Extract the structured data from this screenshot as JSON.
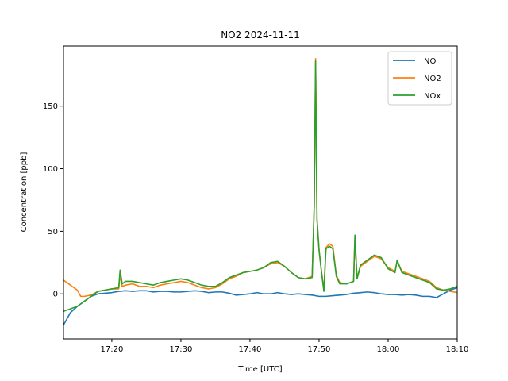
{
  "chart_data": {
    "type": "line",
    "title": "NO2 2024-11-11",
    "xlabel": "Time [UTC]",
    "ylabel": "Concentration [ppb]",
    "x_unit": "time (HH:MM)",
    "xlim": [
      "17:13",
      "18:10"
    ],
    "ylim": [
      -36,
      198
    ],
    "x_ticks": [
      "17:20",
      "17:30",
      "17:40",
      "17:50",
      "18:00",
      "18:10"
    ],
    "y_ticks": [
      0,
      50,
      100,
      150
    ],
    "grid": false,
    "legend_position": "top-right",
    "series": [
      {
        "name": "NO",
        "color": "#1f77b4",
        "points": [
          [
            "17:13",
            -25
          ],
          [
            "17:14",
            -15
          ],
          [
            "17:15",
            -10
          ],
          [
            "17:16",
            -6
          ],
          [
            "17:17",
            -2
          ],
          [
            "17:18",
            0
          ],
          [
            "17:19",
            0.5
          ],
          [
            "17:20",
            1
          ],
          [
            "17:21",
            2
          ],
          [
            "17:22",
            2.5
          ],
          [
            "17:23",
            2
          ],
          [
            "17:24",
            2.5
          ],
          [
            "17:25",
            2.5
          ],
          [
            "17:26",
            1.5
          ],
          [
            "17:27",
            2
          ],
          [
            "17:28",
            2
          ],
          [
            "17:29",
            1.5
          ],
          [
            "17:30",
            1.5
          ],
          [
            "17:31",
            2
          ],
          [
            "17:32",
            2.5
          ],
          [
            "17:33",
            2
          ],
          [
            "17:34",
            1
          ],
          [
            "17:35",
            1.5
          ],
          [
            "17:36",
            1.5
          ],
          [
            "17:37",
            0.5
          ],
          [
            "17:38",
            -1
          ],
          [
            "17:39",
            -0.5
          ],
          [
            "17:40",
            0
          ],
          [
            "17:41",
            1
          ],
          [
            "17:42",
            0
          ],
          [
            "17:43",
            0
          ],
          [
            "17:44",
            1
          ],
          [
            "17:45",
            0
          ],
          [
            "17:46",
            -0.5
          ],
          [
            "17:47",
            0
          ],
          [
            "17:48",
            -0.5
          ],
          [
            "17:49",
            -1
          ],
          [
            "17:50",
            -2
          ],
          [
            "17:51",
            -2
          ],
          [
            "17:52",
            -1.5
          ],
          [
            "17:53",
            -1
          ],
          [
            "17:54",
            -0.5
          ],
          [
            "17:55",
            0.5
          ],
          [
            "17:56",
            1
          ],
          [
            "17:57",
            1.5
          ],
          [
            "17:58",
            1
          ],
          [
            "17:59",
            0
          ],
          [
            "18:00",
            -0.5
          ],
          [
            "18:01",
            -0.5
          ],
          [
            "18:02",
            -1
          ],
          [
            "18:03",
            -0.5
          ],
          [
            "18:04",
            -1
          ],
          [
            "18:05",
            -2
          ],
          [
            "18:06",
            -2
          ],
          [
            "18:07",
            -3
          ],
          [
            "18:08",
            0
          ],
          [
            "18:09",
            3
          ],
          [
            "18:10",
            5
          ]
        ]
      },
      {
        "name": "NO2",
        "color": "#ff7f0e",
        "points": [
          [
            "17:13",
            11
          ],
          [
            "17:14",
            7
          ],
          [
            "17:15",
            3
          ],
          [
            "17:15.5",
            -2
          ],
          [
            "17:16",
            -2
          ],
          [
            "17:17",
            -1
          ],
          [
            "17:18",
            2
          ],
          [
            "17:19",
            3
          ],
          [
            "17:20",
            4
          ],
          [
            "17:21",
            4
          ],
          [
            "17:21.2",
            15
          ],
          [
            "17:21.5",
            6
          ],
          [
            "17:22",
            7
          ],
          [
            "17:23",
            8
          ],
          [
            "17:24",
            6
          ],
          [
            "17:25",
            6
          ],
          [
            "17:26",
            5
          ],
          [
            "17:27",
            7
          ],
          [
            "17:28",
            8
          ],
          [
            "17:29",
            9
          ],
          [
            "17:30",
            10
          ],
          [
            "17:31",
            9
          ],
          [
            "17:32",
            7
          ],
          [
            "17:33",
            5
          ],
          [
            "17:34",
            4
          ],
          [
            "17:35",
            5
          ],
          [
            "17:36",
            8
          ],
          [
            "17:37",
            12
          ],
          [
            "17:38",
            14
          ],
          [
            "17:39",
            17
          ],
          [
            "17:40",
            18
          ],
          [
            "17:41",
            19
          ],
          [
            "17:42",
            21
          ],
          [
            "17:43",
            24
          ],
          [
            "17:44",
            25
          ],
          [
            "17:45",
            22
          ],
          [
            "17:46",
            17
          ],
          [
            "17:47",
            13
          ],
          [
            "17:48",
            12
          ],
          [
            "17:49",
            14
          ],
          [
            "17:49.3",
            70
          ],
          [
            "17:49.5",
            188
          ],
          [
            "17:49.7",
            60
          ],
          [
            "17:50",
            35
          ],
          [
            "17:50.3",
            20
          ],
          [
            "17:50.7",
            3
          ],
          [
            "17:51",
            37
          ],
          [
            "17:51.5",
            40
          ],
          [
            "17:52",
            38
          ],
          [
            "17:52.5",
            15
          ],
          [
            "17:53",
            9
          ],
          [
            "17:54",
            8
          ],
          [
            "17:55",
            10
          ],
          [
            "17:55.2",
            45
          ],
          [
            "17:55.5",
            12
          ],
          [
            "17:56",
            22
          ],
          [
            "17:57",
            26
          ],
          [
            "17:58",
            30
          ],
          [
            "17:59",
            28
          ],
          [
            "18:00",
            21
          ],
          [
            "18:01",
            18
          ],
          [
            "18:01.3",
            26
          ],
          [
            "18:02",
            18
          ],
          [
            "18:03",
            16
          ],
          [
            "18:04",
            14
          ],
          [
            "18:05",
            12
          ],
          [
            "18:06",
            10
          ],
          [
            "18:07",
            5
          ],
          [
            "18:08",
            3
          ],
          [
            "18:09",
            2
          ],
          [
            "18:10",
            1
          ]
        ]
      },
      {
        "name": "NOx",
        "color": "#2ca02c",
        "points": [
          [
            "17:13",
            -14
          ],
          [
            "17:14",
            -12
          ],
          [
            "17:15",
            -10
          ],
          [
            "17:16",
            -6
          ],
          [
            "17:17",
            -2
          ],
          [
            "17:18",
            2
          ],
          [
            "17:19",
            3
          ],
          [
            "17:20",
            4
          ],
          [
            "17:21",
            5
          ],
          [
            "17:21.2",
            19
          ],
          [
            "17:21.5",
            8
          ],
          [
            "17:22",
            10
          ],
          [
            "17:23",
            10
          ],
          [
            "17:24",
            9
          ],
          [
            "17:25",
            8
          ],
          [
            "17:26",
            7
          ],
          [
            "17:27",
            9
          ],
          [
            "17:28",
            10
          ],
          [
            "17:29",
            11
          ],
          [
            "17:30",
            12
          ],
          [
            "17:31",
            11
          ],
          [
            "17:32",
            9
          ],
          [
            "17:33",
            7
          ],
          [
            "17:34",
            6
          ],
          [
            "17:35",
            6
          ],
          [
            "17:36",
            9
          ],
          [
            "17:37",
            13
          ],
          [
            "17:38",
            15
          ],
          [
            "17:39",
            17
          ],
          [
            "17:40",
            18
          ],
          [
            "17:41",
            19
          ],
          [
            "17:42",
            21
          ],
          [
            "17:43",
            25
          ],
          [
            "17:44",
            26
          ],
          [
            "17:45",
            22
          ],
          [
            "17:46",
            17
          ],
          [
            "17:47",
            13
          ],
          [
            "17:48",
            12
          ],
          [
            "17:49",
            13
          ],
          [
            "17:49.3",
            70
          ],
          [
            "17:49.5",
            186
          ],
          [
            "17:49.7",
            60
          ],
          [
            "17:50",
            35
          ],
          [
            "17:50.3",
            20
          ],
          [
            "17:50.7",
            2
          ],
          [
            "17:51",
            36
          ],
          [
            "17:51.5",
            38
          ],
          [
            "17:52",
            36
          ],
          [
            "17:52.5",
            14
          ],
          [
            "17:53",
            8
          ],
          [
            "17:54",
            8
          ],
          [
            "17:55",
            10
          ],
          [
            "17:55.2",
            47
          ],
          [
            "17:55.5",
            12
          ],
          [
            "17:56",
            23
          ],
          [
            "17:57",
            27
          ],
          [
            "17:58",
            31
          ],
          [
            "17:59",
            29
          ],
          [
            "18:00",
            20
          ],
          [
            "18:01",
            17
          ],
          [
            "18:01.3",
            27
          ],
          [
            "18:02",
            17
          ],
          [
            "18:03",
            15
          ],
          [
            "18:04",
            13
          ],
          [
            "18:05",
            11
          ],
          [
            "18:06",
            9
          ],
          [
            "18:07",
            4
          ],
          [
            "18:08",
            3
          ],
          [
            "18:09",
            4
          ],
          [
            "18:10",
            6
          ]
        ]
      }
    ]
  }
}
